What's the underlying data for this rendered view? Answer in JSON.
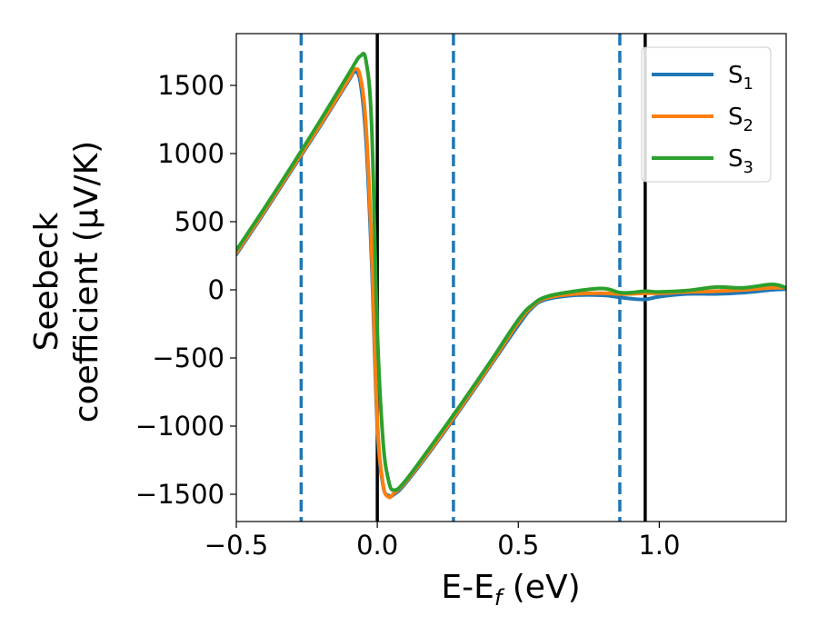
{
  "chart_data": {
    "type": "line",
    "xlabel": "E-E",
    "xlabel_sub": "f",
    "xlabel_unit": " (eV)",
    "ylabel_line1": "Seebeck",
    "ylabel_line2": "coefficient  (μV/K)",
    "xlim": [
      -0.5,
      1.45
    ],
    "ylim": [
      -1700,
      1880
    ],
    "x_ticks": [
      -0.5,
      0.0,
      0.5,
      1.0
    ],
    "x_tick_labels": [
      "−0.5",
      "0.0",
      "0.5",
      "1.0"
    ],
    "y_ticks": [
      -1500,
      -1000,
      -500,
      0,
      500,
      1000,
      1500
    ],
    "y_tick_labels": [
      "−1500",
      "−1000",
      "−500",
      "0",
      "500",
      "1000",
      "1500"
    ],
    "legend_position": "top-right",
    "vertical_lines": [
      {
        "x": -0.27,
        "style": "dashed",
        "color": "#1f77b4"
      },
      {
        "x": 0.0,
        "style": "solid",
        "color": "#000000"
      },
      {
        "x": 0.27,
        "style": "dashed",
        "color": "#1f77b4"
      },
      {
        "x": 0.86,
        "style": "dashed",
        "color": "#1f77b4"
      },
      {
        "x": 0.95,
        "style": "solid",
        "color": "#000000"
      }
    ],
    "series": [
      {
        "name": "S",
        "name_sub": "1",
        "color": "#1f77b4",
        "x": [
          -0.5,
          -0.4,
          -0.3,
          -0.2,
          -0.1,
          -0.08,
          -0.06,
          -0.04,
          -0.02,
          0.0,
          0.02,
          0.04,
          0.06,
          0.1,
          0.2,
          0.3,
          0.4,
          0.5,
          0.55,
          0.6,
          0.7,
          0.8,
          0.86,
          0.9,
          0.95,
          1.0,
          1.1,
          1.2,
          1.3,
          1.4,
          1.45
        ],
        "y": [
          260,
          570,
          890,
          1210,
          1540,
          1600,
          1520,
          1100,
          200,
          -1000,
          -1430,
          -1510,
          -1500,
          -1420,
          -1150,
          -860,
          -560,
          -260,
          -130,
          -70,
          -40,
          -40,
          -55,
          -65,
          -70,
          -50,
          -30,
          -30,
          -20,
          0,
          5
        ]
      },
      {
        "name": "S",
        "name_sub": "2",
        "color": "#ff7f0e",
        "x": [
          -0.5,
          -0.4,
          -0.3,
          -0.2,
          -0.1,
          -0.08,
          -0.06,
          -0.04,
          -0.02,
          0.0,
          0.02,
          0.04,
          0.06,
          0.1,
          0.2,
          0.3,
          0.4,
          0.5,
          0.55,
          0.6,
          0.7,
          0.8,
          0.86,
          0.9,
          0.95,
          1.0,
          1.1,
          1.2,
          1.3,
          1.4,
          1.45
        ],
        "y": [
          270,
          580,
          900,
          1220,
          1550,
          1620,
          1560,
          1200,
          300,
          -950,
          -1420,
          -1520,
          -1490,
          -1410,
          -1140,
          -850,
          -550,
          -240,
          -120,
          -60,
          -30,
          -25,
          -30,
          -30,
          -25,
          -25,
          -15,
          -10,
          0,
          15,
          15
        ]
      },
      {
        "name": "S",
        "name_sub": "3",
        "color": "#2ca02c",
        "x": [
          -0.5,
          -0.4,
          -0.3,
          -0.2,
          -0.1,
          -0.08,
          -0.06,
          -0.04,
          -0.02,
          0.0,
          0.02,
          0.04,
          0.06,
          0.1,
          0.2,
          0.3,
          0.4,
          0.5,
          0.55,
          0.6,
          0.7,
          0.8,
          0.86,
          0.9,
          0.95,
          1.0,
          1.1,
          1.2,
          1.3,
          1.4,
          1.45
        ],
        "y": [
          290,
          600,
          920,
          1250,
          1590,
          1660,
          1715,
          1680,
          1200,
          -300,
          -1100,
          -1400,
          -1470,
          -1400,
          -1120,
          -830,
          -530,
          -220,
          -110,
          -50,
          -10,
          10,
          -20,
          -20,
          -10,
          -15,
          -5,
          20,
          15,
          40,
          15
        ]
      }
    ]
  }
}
